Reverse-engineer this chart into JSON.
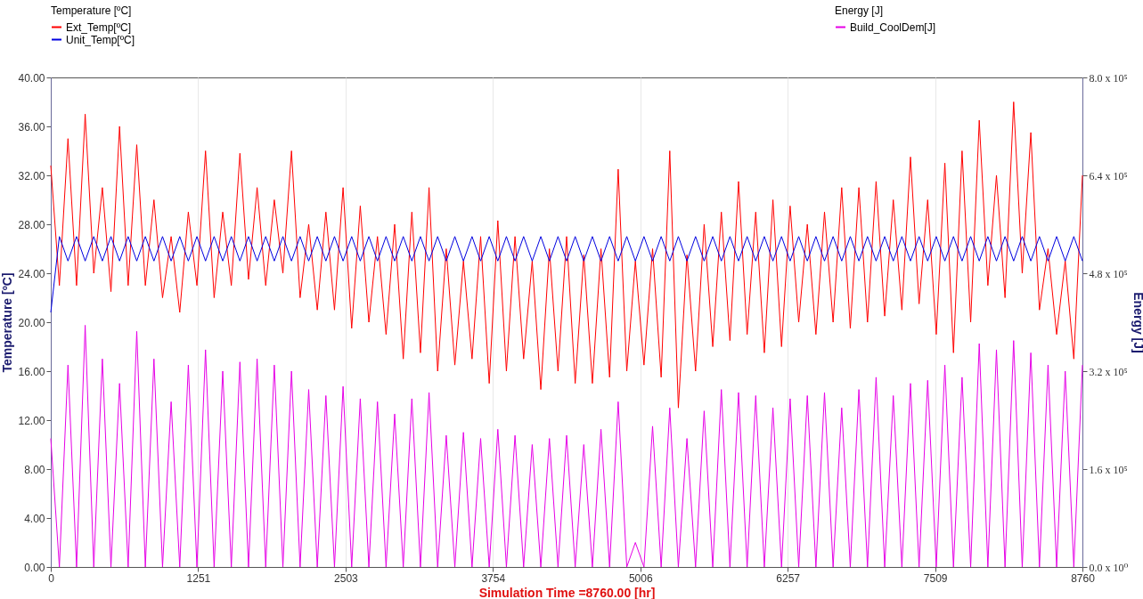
{
  "chart_data": {
    "type": "line",
    "xlabel": "Simulation Time =8760.00 [hr]",
    "ylabel": "Temperature [ºC]",
    "y2label": "Energy [J]",
    "legend_title": "Temperature [ºC]",
    "annotations": [
      "Energy [J]"
    ],
    "legend": "top left",
    "grid": "x",
    "x": [
      0,
      73,
      146,
      219,
      292,
      365,
      438,
      511,
      584,
      657,
      730,
      803,
      876,
      949,
      1022,
      1095,
      1168,
      1241,
      1314,
      1387,
      1460,
      1533,
      1606,
      1679,
      1752,
      1825,
      1898,
      1971,
      2044,
      2117,
      2190,
      2263,
      2336,
      2409,
      2482,
      2555,
      2628,
      2701,
      2774,
      2847,
      2920,
      2993,
      3066,
      3139,
      3212,
      3285,
      3358,
      3431,
      3504,
      3577,
      3650,
      3723,
      3796,
      3869,
      3942,
      4015,
      4088,
      4161,
      4234,
      4307,
      4380,
      4453,
      4526,
      4599,
      4672,
      4745,
      4818,
      4891,
      4964,
      5037,
      5110,
      5183,
      5256,
      5329,
      5402,
      5475,
      5548,
      5621,
      5694,
      5767,
      5840,
      5913,
      5986,
      6059,
      6132,
      6205,
      6278,
      6351,
      6424,
      6497,
      6570,
      6643,
      6716,
      6789,
      6862,
      6935,
      7008,
      7081,
      7154,
      7227,
      7300,
      7373,
      7446,
      7519,
      7592,
      7665,
      7738,
      7811,
      7884,
      7957,
      8030,
      8103,
      8176,
      8249,
      8322,
      8395,
      8468,
      8541,
      8614,
      8687,
      8760
    ],
    "xlim": [
      0,
      8760
    ],
    "xticks": [
      0,
      1251,
      2503,
      3754,
      5006,
      6257,
      7509,
      8760
    ],
    "ylim": [
      0,
      40
    ],
    "yticks": [
      {
        "value": 0,
        "label": "0.00"
      },
      {
        "value": 4,
        "label": "4.00"
      },
      {
        "value": 8,
        "label": "8.00"
      },
      {
        "value": 12,
        "label": "12.00"
      },
      {
        "value": 16,
        "label": "16.00"
      },
      {
        "value": 20,
        "label": "20.00"
      },
      {
        "value": 24,
        "label": "24.00"
      },
      {
        "value": 28,
        "label": "28.00"
      },
      {
        "value": 32,
        "label": "32.00"
      },
      {
        "value": 36,
        "label": "36.00"
      },
      {
        "value": 40,
        "label": "40.00"
      }
    ],
    "y2lim": [
      0,
      800000
    ],
    "y2ticks": [
      {
        "value": 0,
        "label": "0.0 x 10⁰"
      },
      {
        "value": 160000,
        "label": "1.6 x 10⁵"
      },
      {
        "value": 320000,
        "label": "3.2 x 10⁵"
      },
      {
        "value": 480000,
        "label": "4.8 x 10⁵"
      },
      {
        "value": 640000,
        "label": "6.4 x 10⁵"
      },
      {
        "value": 800000,
        "label": "8.0 x 10⁵"
      }
    ],
    "series": [
      {
        "name": "Build_CoolDem[J]",
        "color": "#e600e6",
        "axis": "y2",
        "values": [
          210000,
          0,
          330000,
          0,
          395000,
          0,
          340000,
          0,
          300000,
          0,
          385000,
          0,
          340000,
          0,
          270000,
          0,
          330000,
          0,
          355000,
          0,
          320000,
          0,
          335000,
          0,
          340000,
          0,
          330000,
          0,
          320000,
          0,
          290000,
          0,
          280000,
          0,
          295000,
          0,
          275000,
          0,
          270000,
          0,
          250000,
          0,
          275000,
          0,
          285000,
          0,
          215000,
          0,
          220000,
          0,
          210000,
          0,
          225000,
          0,
          215000,
          0,
          200000,
          0,
          210000,
          0,
          215000,
          0,
          200000,
          0,
          225000,
          0,
          270000,
          0,
          40000,
          0,
          230000,
          0,
          260000,
          0,
          210000,
          0,
          255000,
          0,
          290000,
          0,
          285000,
          0,
          280000,
          0,
          260000,
          0,
          275000,
          0,
          280000,
          0,
          285000,
          0,
          260000,
          0,
          290000,
          0,
          310000,
          0,
          280000,
          0,
          300000,
          0,
          305000,
          0,
          330000,
          0,
          310000,
          0,
          365000,
          0,
          355000,
          0,
          370000,
          0,
          350000,
          0,
          330000,
          0,
          320000,
          0,
          330000
        ]
      },
      {
        "name": "Ext_Temp[ºC]",
        "color": "#ff0000",
        "values": [
          32.8,
          23,
          35,
          23,
          37,
          24,
          31,
          22.5,
          36,
          23,
          34.5,
          23,
          30,
          22,
          27,
          20.8,
          29,
          23,
          34,
          22,
          29,
          23,
          33.8,
          23.5,
          31,
          23,
          30,
          24,
          34,
          22,
          28,
          21,
          29,
          21,
          31,
          19.5,
          29.5,
          20,
          27,
          19,
          28,
          17,
          29,
          17.5,
          31,
          16,
          26,
          16.5,
          25,
          17,
          27,
          15,
          28.3,
          16,
          27,
          17,
          25,
          14.5,
          26,
          16,
          27,
          15,
          25.5,
          15,
          26,
          15.5,
          32.5,
          16,
          25,
          16.5,
          26,
          15.5,
          34,
          13,
          25.5,
          16,
          28,
          18,
          29,
          18.5,
          31.5,
          19,
          29,
          17.5,
          30,
          18,
          29.5,
          20,
          28,
          19,
          29,
          20,
          31,
          19.5,
          31,
          20,
          31.5,
          20.5,
          30,
          21,
          33.5,
          21.5,
          30,
          19,
          33,
          17.5,
          34,
          20,
          36.5,
          23,
          32,
          22,
          38,
          24,
          35.5,
          21,
          26,
          19,
          25,
          17,
          32
        ]
      },
      {
        "name": "Unit_Temp[ºC]",
        "color": "#0000e0",
        "values": [
          20.8,
          27,
          25,
          27,
          25,
          27,
          25,
          27,
          25,
          27,
          25,
          27,
          25,
          27,
          25,
          27,
          25,
          27,
          25,
          27,
          25,
          27,
          25,
          27,
          25,
          27,
          25,
          27,
          25,
          27,
          25,
          27,
          25,
          27,
          25,
          27,
          25,
          27,
          25,
          27,
          25,
          27,
          25,
          27,
          25,
          27,
          25,
          27,
          25,
          27,
          25,
          27,
          25,
          27,
          25,
          27,
          25,
          27,
          25,
          27,
          25,
          27,
          25,
          27,
          25,
          27,
          25,
          27,
          25,
          27,
          25,
          27,
          25,
          27,
          25,
          27,
          25,
          27,
          25,
          27,
          25,
          27,
          25,
          27,
          25,
          27,
          25,
          27,
          25,
          27,
          25,
          27,
          25,
          27,
          25,
          27,
          25,
          27,
          25,
          27,
          25,
          27,
          25,
          27,
          25,
          27,
          25,
          27,
          25,
          27,
          25,
          27,
          25,
          27,
          25,
          27,
          25,
          27,
          25,
          27,
          25
        ]
      }
    ]
  }
}
